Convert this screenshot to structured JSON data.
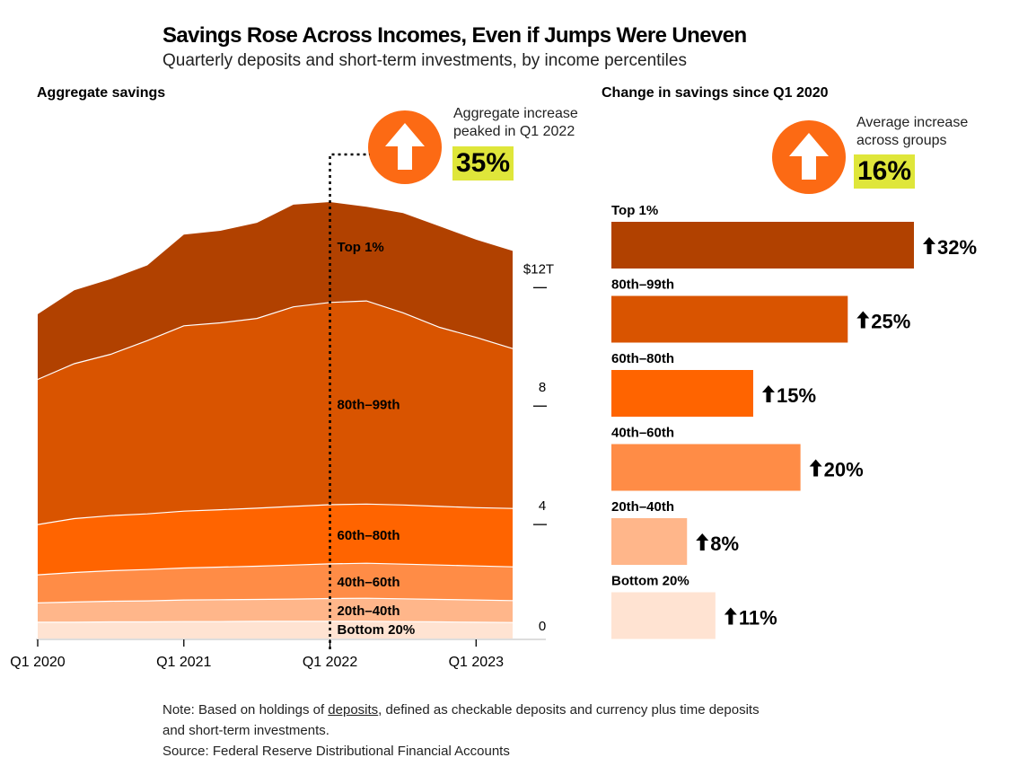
{
  "header": {
    "title": "Savings Rose Across Incomes, Even if Jumps Were Uneven",
    "subtitle": "Quarterly deposits and short-term investments, by income percentiles"
  },
  "left_panel": {
    "title": "Aggregate savings",
    "callout_line1": "Aggregate increase",
    "callout_line2": "peaked in Q1 2022",
    "callout_value": "35%"
  },
  "right_panel": {
    "title": "Change in savings since Q1 2020",
    "callout_line1": "Average increase",
    "callout_line2": "across groups",
    "callout_value": "16%"
  },
  "icons": {
    "up_arrow": "up-arrow-icon"
  },
  "colors": {
    "top_1": "#b14100",
    "p80_99": "#d95400",
    "p60_80": "#ff6400",
    "p40_60": "#ff8c46",
    "p20_40": "#ffb68a",
    "bottom_20": "#ffe3d2",
    "highlight": "#dfe63a",
    "accent": "#fc6a14"
  },
  "chart_data": [
    {
      "type": "area",
      "stacked": true,
      "title": "Aggregate savings",
      "x": [
        "Q1 2020",
        "Q2 2020",
        "Q3 2020",
        "Q4 2020",
        "Q1 2021",
        "Q2 2021",
        "Q3 2021",
        "Q4 2021",
        "Q1 2022",
        "Q2 2022",
        "Q3 2022",
        "Q4 2022",
        "Q1 2023",
        "Q2 2023"
      ],
      "x_ticks": [
        "Q1 2020",
        "Q1 2021",
        "Q1 2022",
        "Q1 2023"
      ],
      "y_ticks": [
        "0",
        "4",
        "8",
        "$12T"
      ],
      "y_tick_values": [
        0,
        4,
        8,
        12
      ],
      "ylim": [
        0,
        14.8
      ],
      "y_axis_side": "right",
      "grid": false,
      "reference_line": "Q1 2022",
      "series": [
        {
          "name": "Bottom 20%",
          "values": [
            0.55,
            0.55,
            0.56,
            0.56,
            0.57,
            0.57,
            0.58,
            0.58,
            0.58,
            0.58,
            0.57,
            0.56,
            0.55,
            0.54
          ]
        },
        {
          "name": "20th–40th",
          "values": [
            0.65,
            0.68,
            0.7,
            0.71,
            0.73,
            0.74,
            0.74,
            0.75,
            0.77,
            0.78,
            0.77,
            0.76,
            0.75,
            0.74
          ]
        },
        {
          "name": "40th–60th",
          "values": [
            0.95,
            1.0,
            1.03,
            1.06,
            1.08,
            1.1,
            1.12,
            1.15,
            1.17,
            1.18,
            1.17,
            1.16,
            1.15,
            1.14
          ]
        },
        {
          "name": "60th–80th",
          "values": [
            1.7,
            1.82,
            1.86,
            1.88,
            1.92,
            1.94,
            1.96,
            1.98,
            2.0,
            2.0,
            2.0,
            1.98,
            1.97,
            1.97
          ]
        },
        {
          "name": "80th–99th",
          "values": [
            4.9,
            5.23,
            5.45,
            5.85,
            6.26,
            6.31,
            6.41,
            6.74,
            6.83,
            6.86,
            6.49,
            6.05,
            5.75,
            5.4
          ]
        },
        {
          "name": "Top 1%",
          "values": [
            2.2,
            2.48,
            2.54,
            2.54,
            3.08,
            3.11,
            3.23,
            3.45,
            3.39,
            3.18,
            3.37,
            3.41,
            3.3,
            3.3
          ]
        }
      ]
    },
    {
      "type": "bar",
      "orientation": "horizontal",
      "title": "Change in savings since Q1 2020",
      "categories": [
        "Top 1%",
        "80th–99th",
        "60th–80th",
        "40th–60th",
        "20th–40th",
        "Bottom 20%"
      ],
      "values": [
        32,
        25,
        15,
        20,
        8,
        11
      ],
      "labels": [
        "32%",
        "25%",
        "15%",
        "20%",
        "8%",
        "11%"
      ],
      "unit": "%"
    }
  ],
  "footer": {
    "note_prefix": "Note: Based on holdings of ",
    "note_link": "deposits",
    "note_suffix": ", defined as checkable deposits and currency plus time deposits",
    "note_line2": "and short-term investments.",
    "source": "Source: Federal Reserve Distributional Financial Accounts"
  }
}
